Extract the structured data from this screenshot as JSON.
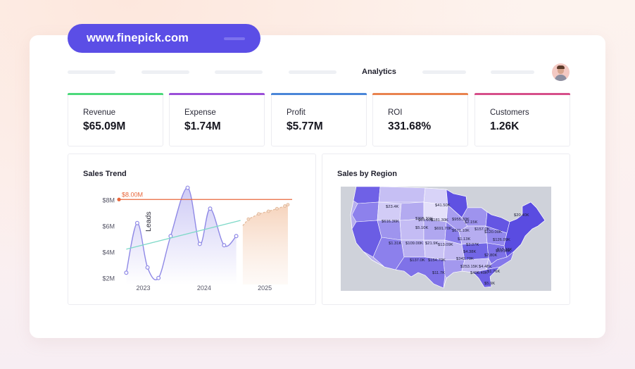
{
  "browser": {
    "url": "www.finepick.com"
  },
  "nav": {
    "title": "Analytics"
  },
  "kpis": [
    {
      "label": "Revenue",
      "value": "$65.09M",
      "color": "#4cd97b"
    },
    {
      "label": "Expense",
      "value": "$1.74M",
      "color": "#9b4fd8"
    },
    {
      "label": "Profit",
      "value": "$5.77M",
      "color": "#4a86d8"
    },
    {
      "label": "ROI",
      "value": "331.68%",
      "color": "#e9834f"
    },
    {
      "label": "Customers",
      "value": "1.26K",
      "color": "#d64f8a"
    }
  ],
  "sales_trend": {
    "title": "Sales Trend",
    "target_label": "$8.00M"
  },
  "sales_region": {
    "title": "Sales by Region",
    "labels": [
      "$23.4K",
      "$41.50K",
      "$305.31K",
      "$61.60K",
      "$5.10K",
      "$181.30K",
      "$955.30K",
      "$20.40K",
      "$616.36K",
      "$691.70K",
      "$671.10K",
      "$2.15K",
      "$157.0K",
      "$120.00K",
      "$1.31K",
      "$109.00K",
      "$21.9K",
      "$13.09K",
      "$1.13K",
      "$3.07K",
      "$126.99K",
      "$4.38K",
      "$13.38K",
      "$13.38K",
      "$137.0K",
      "$154.70K",
      "$2.80K",
      "$342.70K",
      "$253.15K",
      "$4.48K",
      "$1.76K",
      "$11.7K",
      "$406.40K",
      "$5.9K"
    ]
  },
  "chart_data": {
    "type": "line",
    "title": "Sales Trend",
    "xlabel": "",
    "ylabel": "Leads",
    "x_ticks": [
      "2023",
      "2024",
      "2025"
    ],
    "y_ticks": [
      "$2M",
      "$4M",
      "$6M",
      "$8M"
    ],
    "ylim": [
      1.5,
      8.5
    ],
    "xlim": [
      2022.6,
      2025.45
    ],
    "target": {
      "label": "$8.00M",
      "value": 8.0,
      "color": "#e8673b"
    },
    "series": [
      {
        "values": [
          [
            2022.72,
            2.4
          ],
          [
            2022.9,
            6.2
          ],
          [
            2023.07,
            2.8
          ],
          [
            2023.25,
            2.0
          ],
          [
            2023.45,
            5.2
          ],
          [
            2023.73,
            8.9
          ],
          [
            2023.93,
            4.6
          ],
          [
            2024.1,
            7.3
          ],
          [
            2024.33,
            4.5
          ],
          [
            2024.53,
            5.2
          ]
        ],
        "color": "#8f89e6"
      },
      {
        "values": [
          [
            2022.72,
            4.2
          ],
          [
            2024.6,
            6.4
          ]
        ],
        "color": "#7ed9c8"
      },
      {
        "values": [
          [
            2024.73,
            6.5
          ],
          [
            2024.9,
            6.9
          ],
          [
            2025.06,
            7.1
          ],
          [
            2025.2,
            7.3
          ],
          [
            2025.33,
            7.5
          ],
          [
            2025.38,
            7.6
          ]
        ],
        "color": "#e3ba9c"
      }
    ]
  }
}
